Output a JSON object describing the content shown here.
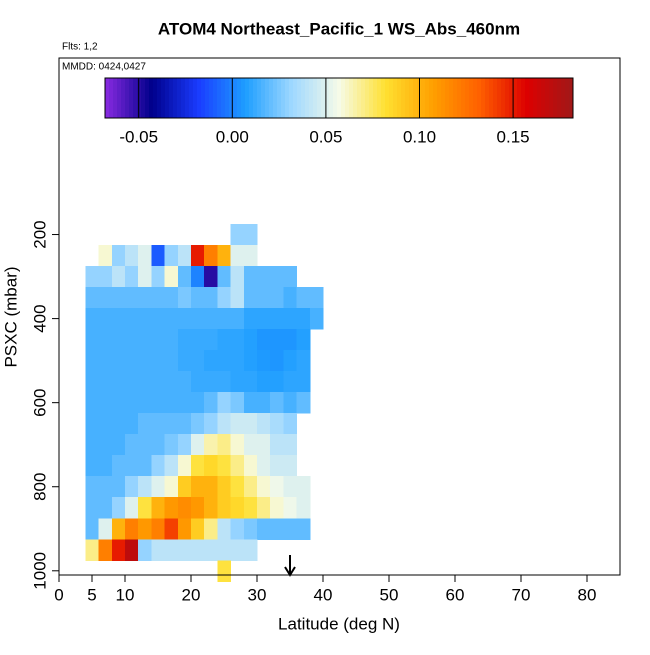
{
  "chart_data": {
    "type": "heatmap",
    "title": "ATOM4 Northeast_Pacific_1 WS_Abs_460nm",
    "notes": [
      "Flts: 1,2",
      "MMDD: 0424,0427"
    ],
    "x_label": "Latitude (deg N)",
    "y_label": "PSXC (mbar)",
    "xlim": [
      0,
      85
    ],
    "xticks": [
      0,
      5,
      10,
      20,
      30,
      40,
      50,
      60,
      70,
      80
    ],
    "ylim": [
      -220,
      1010
    ],
    "yticks": [
      200,
      400,
      600,
      800,
      1000
    ],
    "lat_edges": [
      4,
      6,
      8,
      10,
      12,
      14,
      16,
      18,
      20,
      22,
      24,
      26,
      28,
      30,
      32,
      34,
      36,
      38,
      40
    ],
    "levels": [
      200,
      250,
      300,
      350,
      400,
      450,
      500,
      550,
      600,
      650,
      700,
      750,
      800,
      850,
      900,
      950,
      1000
    ],
    "level_height": 50,
    "z": [
      [
        null,
        null,
        null,
        null,
        null,
        null,
        null,
        null,
        null,
        null,
        null,
        0.03,
        0.03,
        null,
        null,
        null,
        null,
        null
      ],
      [
        null,
        0.06,
        0.03,
        0.04,
        0.05,
        -0.01,
        0.03,
        0.04,
        0.15,
        0.12,
        0.1,
        0.05,
        0.05,
        null,
        null,
        null,
        null,
        null
      ],
      [
        0.03,
        0.03,
        0.04,
        0.03,
        0.05,
        0.03,
        0.06,
        0.02,
        0.0,
        -0.05,
        0.02,
        0.04,
        0.02,
        0.02,
        0.02,
        0.02,
        null,
        null
      ],
      [
        0.02,
        0.02,
        0.02,
        0.02,
        0.02,
        0.02,
        0.02,
        0.025,
        0.02,
        0.02,
        0.03,
        0.04,
        0.02,
        0.02,
        0.02,
        0.015,
        0.02,
        0.02
      ],
      [
        0.015,
        0.015,
        0.015,
        0.015,
        0.015,
        0.015,
        0.015,
        0.015,
        0.015,
        0.015,
        0.015,
        0.015,
        0.01,
        0.01,
        0.01,
        0.01,
        0.01,
        0.015
      ],
      [
        0.015,
        0.015,
        0.015,
        0.015,
        0.015,
        0.015,
        0.015,
        0.012,
        0.012,
        0.012,
        0.01,
        0.01,
        0.008,
        0.005,
        0.005,
        0.005,
        0.008,
        null
      ],
      [
        0.015,
        0.015,
        0.015,
        0.015,
        0.015,
        0.015,
        0.015,
        0.012,
        0.012,
        0.01,
        0.01,
        0.01,
        0.008,
        0.006,
        0.005,
        0.008,
        0.01,
        null
      ],
      [
        0.015,
        0.015,
        0.015,
        0.015,
        0.015,
        0.015,
        0.015,
        0.015,
        0.012,
        0.012,
        0.012,
        0.01,
        0.01,
        0.008,
        0.008,
        0.01,
        0.01,
        null
      ],
      [
        0.015,
        0.015,
        0.015,
        0.015,
        0.015,
        0.015,
        0.015,
        0.015,
        0.015,
        0.02,
        0.03,
        0.025,
        0.015,
        0.015,
        0.02,
        0.015,
        0.02,
        null
      ],
      [
        0.015,
        0.015,
        0.015,
        0.015,
        0.02,
        0.02,
        0.02,
        0.02,
        0.025,
        0.03,
        0.04,
        0.045,
        0.045,
        0.04,
        0.035,
        0.03,
        null,
        null
      ],
      [
        0.015,
        0.015,
        0.015,
        0.02,
        0.02,
        0.02,
        0.025,
        0.03,
        0.05,
        0.065,
        0.07,
        0.06,
        0.05,
        0.05,
        0.04,
        0.04,
        null,
        null
      ],
      [
        0.015,
        0.015,
        0.02,
        0.02,
        0.02,
        0.03,
        0.04,
        0.06,
        0.08,
        0.085,
        0.08,
        0.07,
        0.06,
        0.05,
        0.045,
        0.045,
        null,
        null
      ],
      [
        0.02,
        0.02,
        0.02,
        0.03,
        0.04,
        0.05,
        0.06,
        0.09,
        0.1,
        0.1,
        0.09,
        0.08,
        0.07,
        0.06,
        0.055,
        0.05,
        0.05,
        null
      ],
      [
        0.02,
        0.02,
        0.03,
        0.05,
        0.08,
        0.1,
        0.11,
        0.115,
        0.11,
        0.1,
        0.09,
        0.085,
        0.08,
        0.07,
        0.06,
        0.055,
        0.05,
        null
      ],
      [
        0.02,
        0.05,
        0.1,
        0.12,
        0.11,
        0.12,
        0.14,
        0.11,
        0.09,
        0.07,
        0.04,
        0.03,
        0.025,
        0.02,
        0.02,
        0.02,
        0.02,
        null
      ],
      [
        0.07,
        0.12,
        0.15,
        0.17,
        0.03,
        0.04,
        0.04,
        0.04,
        0.04,
        0.04,
        0.04,
        0.04,
        0.04,
        null,
        null,
        null,
        null,
        null
      ],
      [
        null,
        null,
        null,
        null,
        null,
        null,
        null,
        null,
        null,
        null,
        0.08,
        null,
        null,
        null,
        null,
        null,
        null,
        null
      ]
    ],
    "zlim": [
      -0.068,
      0.182
    ],
    "zticks": [
      {
        "value": -0.05,
        "label": "-0.05"
      },
      {
        "value": 0,
        "label": "0.00"
      },
      {
        "value": 0.05,
        "label": "0.05"
      },
      {
        "value": 0.1,
        "label": "0.10"
      },
      {
        "value": 0.15,
        "label": "0.15"
      }
    ],
    "colorscale": [
      "#8a2be2",
      "#00008b",
      "#1a3cff",
      "#1e9eff",
      "#9fd8ff",
      "#f6fbe8",
      "#ffe030",
      "#ffa000",
      "#ff6000",
      "#dd0000",
      "#a01818"
    ],
    "arrow_x": 35
  }
}
